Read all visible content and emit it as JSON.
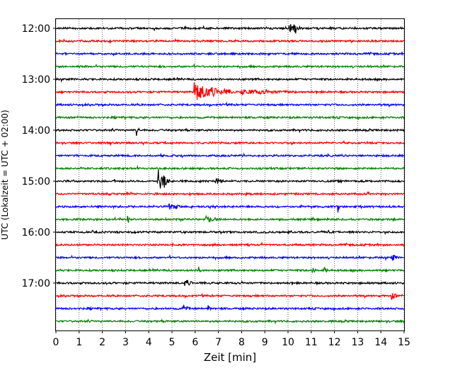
{
  "chart_data": {
    "type": "line",
    "title": "",
    "xlabel": "Zeit  [min]",
    "ylabel": "UTC (Lokalzeit = UTC + 02:00)",
    "xlim": [
      0,
      15
    ],
    "x_ticks": [
      "0",
      "1",
      "2",
      "3",
      "4",
      "5",
      "6",
      "7",
      "8",
      "9",
      "10",
      "11",
      "12",
      "13",
      "14",
      "15"
    ],
    "y_ticks": [
      "12:00",
      "13:00",
      "14:00",
      "15:00",
      "16:00",
      "17:00"
    ],
    "grid": "vertical dotted",
    "trace_colors": [
      "#000000",
      "#ff0000",
      "#0000ff",
      "#008000"
    ],
    "start_time": "12:00",
    "trace_interval_min": 15,
    "trace_count": 24,
    "events": [
      {
        "trace": 0,
        "x": 10.1,
        "amp": 6,
        "dur": 0.5
      },
      {
        "trace": 0,
        "x": 10.3,
        "amp": 11,
        "dur": 0.05
      },
      {
        "trace": 5,
        "x": 6.0,
        "amp": 13,
        "dur": 1.6
      },
      {
        "trace": 5,
        "x": 8.0,
        "amp": 3,
        "dur": 2.5
      },
      {
        "trace": 8,
        "x": 3.5,
        "amp": 7,
        "dur": 0.1
      },
      {
        "trace": 12,
        "x": 4.4,
        "amp": 18,
        "dur": 0.35
      },
      {
        "trace": 12,
        "x": 4.7,
        "amp": 7,
        "dur": 0.2
      },
      {
        "trace": 12,
        "x": 6.9,
        "amp": 4,
        "dur": 0.3
      },
      {
        "trace": 14,
        "x": 4.9,
        "amp": 4,
        "dur": 0.5
      },
      {
        "trace": 14,
        "x": 12.2,
        "amp": 9,
        "dur": 0.05
      },
      {
        "trace": 15,
        "x": 3.1,
        "amp": 5,
        "dur": 0.2
      },
      {
        "trace": 15,
        "x": 6.5,
        "amp": 4,
        "dur": 0.6
      },
      {
        "trace": 18,
        "x": 14.5,
        "amp": 5,
        "dur": 0.2
      },
      {
        "trace": 19,
        "x": 6.2,
        "amp": 6,
        "dur": 0.1
      },
      {
        "trace": 19,
        "x": 11.1,
        "amp": 5,
        "dur": 0.1
      },
      {
        "trace": 19,
        "x": 11.6,
        "amp": 4,
        "dur": 0.1
      },
      {
        "trace": 20,
        "x": 5.6,
        "amp": 4,
        "dur": 0.3
      },
      {
        "trace": 21,
        "x": 14.5,
        "amp": 5,
        "dur": 0.2
      },
      {
        "trace": 22,
        "x": 5.5,
        "amp": 4,
        "dur": 0.3
      },
      {
        "trace": 22,
        "x": 6.6,
        "amp": 4,
        "dur": 0.1
      }
    ]
  }
}
